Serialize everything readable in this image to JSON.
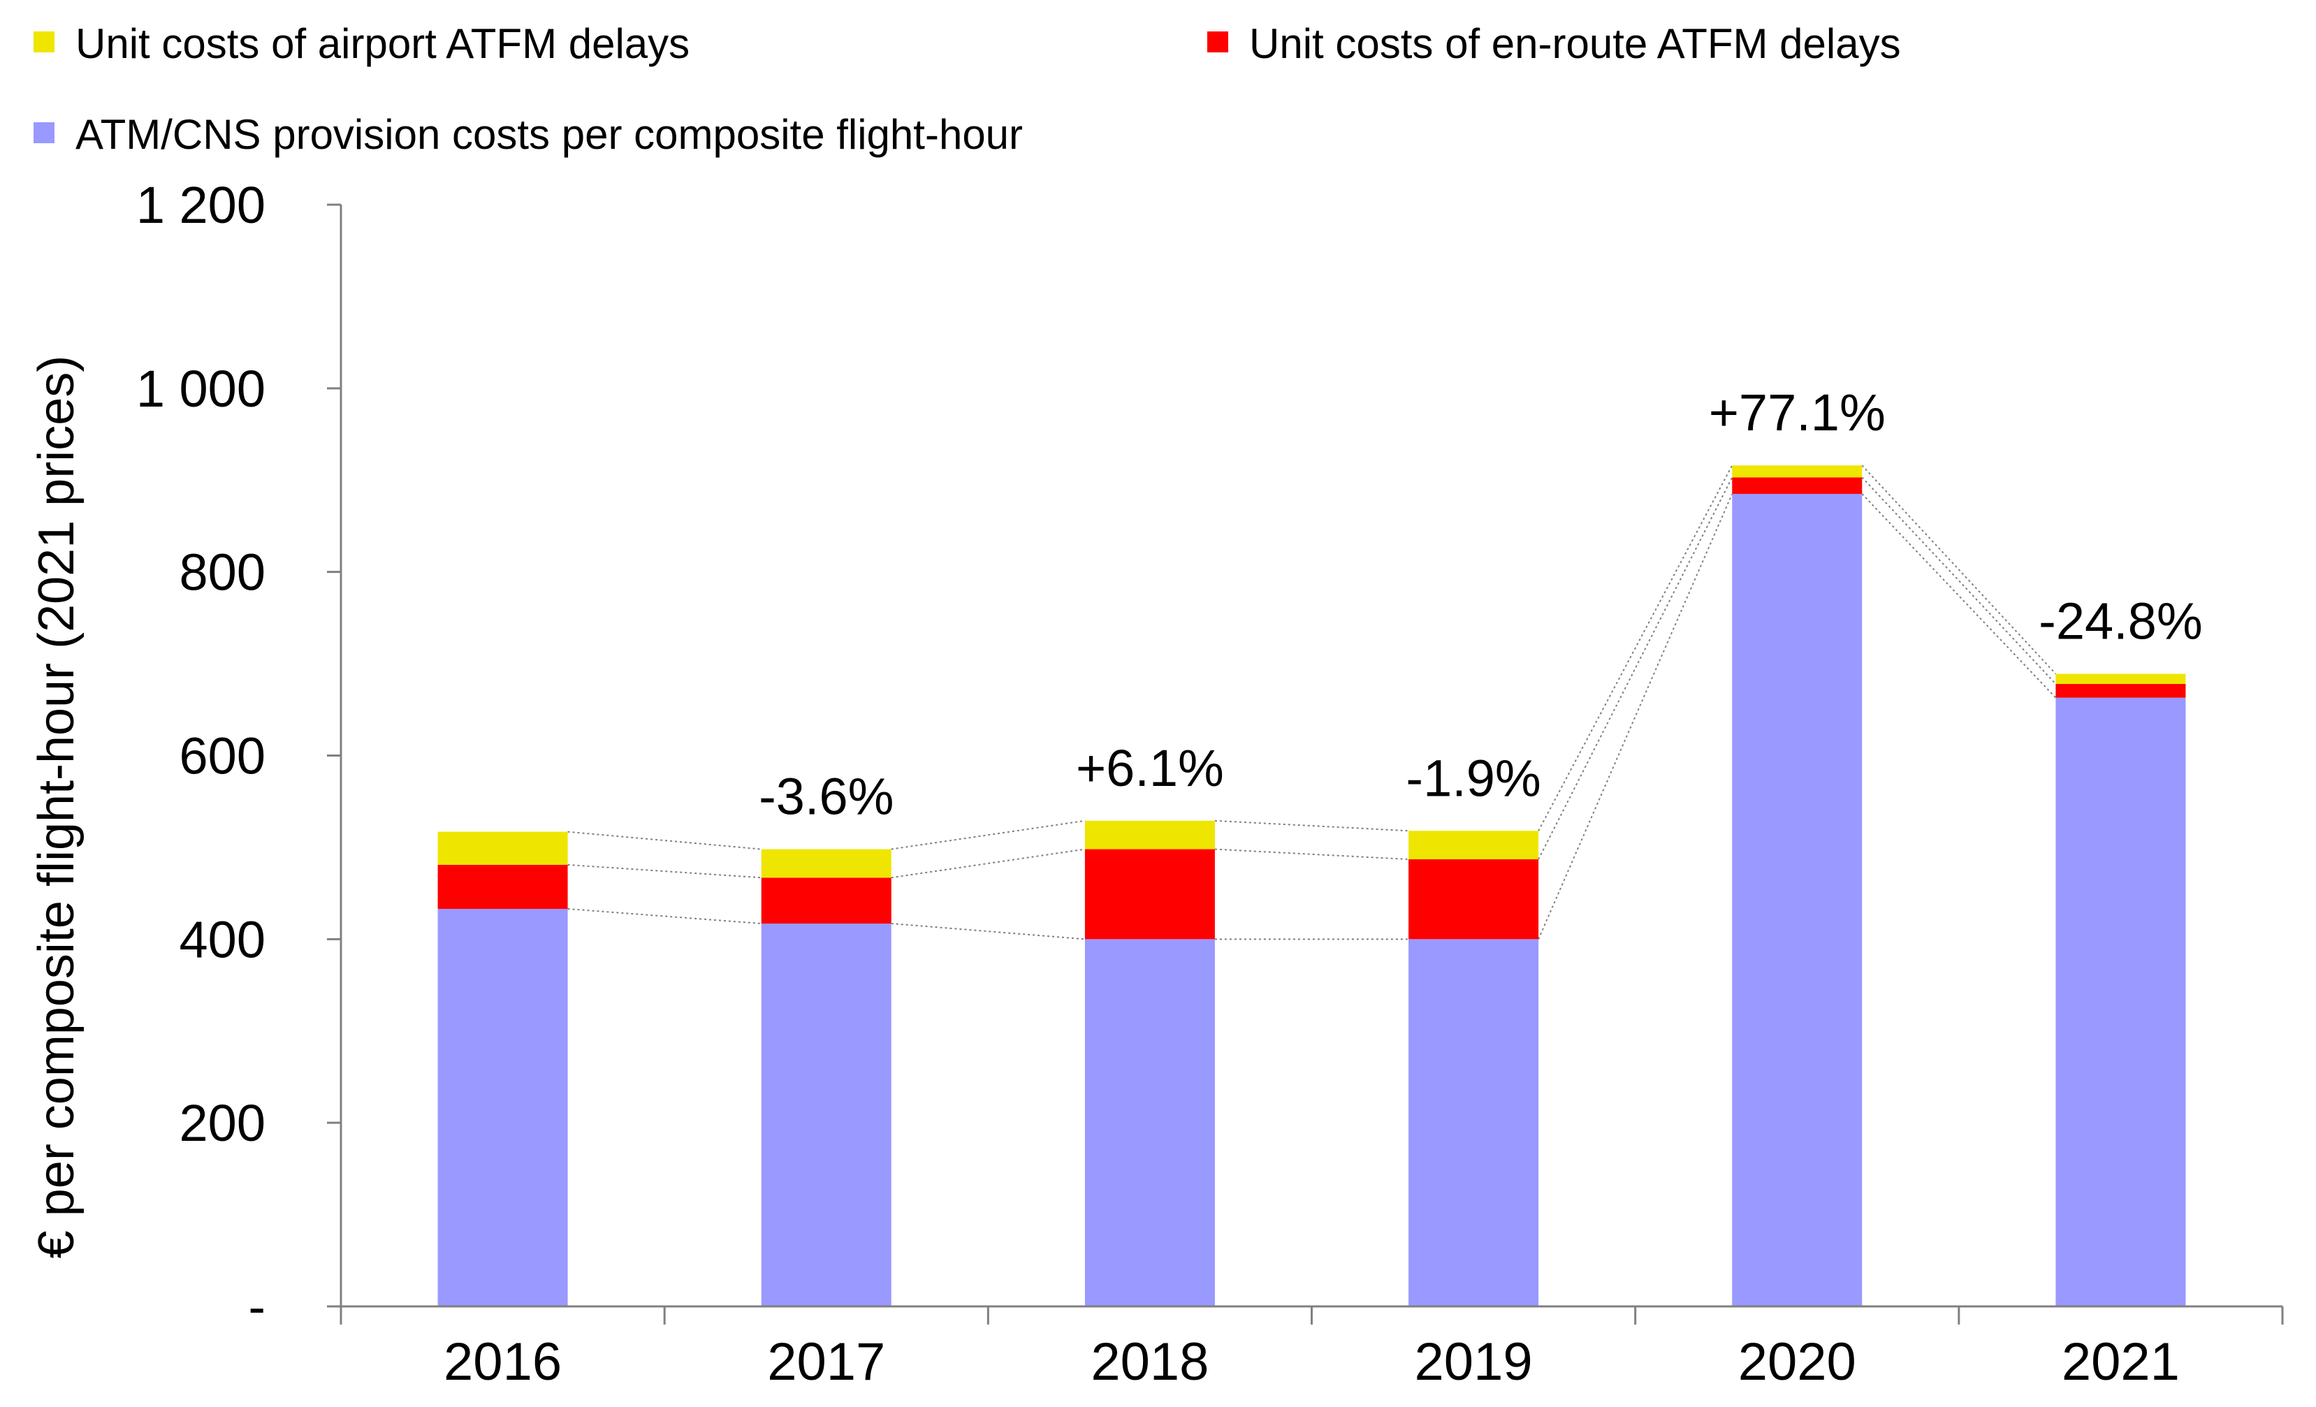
{
  "chart_data": {
    "type": "bar",
    "stacked": true,
    "categories": [
      "2016",
      "2017",
      "2018",
      "2019",
      "2020",
      "2021"
    ],
    "series": [
      {
        "name": "ATM/CNS provision costs per composite flight-hour",
        "color": "#9999FF",
        "values": [
          433,
          417,
          400,
          400,
          885,
          663
        ]
      },
      {
        "name": "Unit costs of en-route ATFM delays",
        "color": "#FF0000",
        "values": [
          48,
          50,
          98,
          87,
          18,
          15
        ]
      },
      {
        "name": "Unit costs of airport ATFM delays",
        "color": "#EEE600",
        "values": [
          36,
          31,
          31,
          31,
          13,
          11
        ]
      }
    ],
    "change_labels": [
      "",
      "-3.6%",
      "+6.1%",
      "-1.9%",
      "+77.1%",
      "-24.8%"
    ],
    "legend": [
      {
        "label": "Unit costs of airport ATFM delays",
        "color": "#EEE600"
      },
      {
        "label": "Unit costs of en-route ATFM delays",
        "color": "#FF0000"
      },
      {
        "label": "ATM/CNS provision costs per composite flight-hour",
        "color": "#9999FF"
      }
    ],
    "ylabel": "€ per composite flight-hour (2021 prices)",
    "xlabel": "",
    "ylim": [
      0,
      1200
    ],
    "yticks": [
      {
        "value": 0,
        "label": "-"
      },
      {
        "value": 200,
        "label": "200"
      },
      {
        "value": 400,
        "label": "400"
      },
      {
        "value": 600,
        "label": "600"
      },
      {
        "value": 800,
        "label": "800"
      },
      {
        "value": 1000,
        "label": "1 000"
      },
      {
        "value": 1200,
        "label": "1 200"
      }
    ],
    "grid": false,
    "legend_position": "top",
    "connector_lines": "dotted"
  }
}
